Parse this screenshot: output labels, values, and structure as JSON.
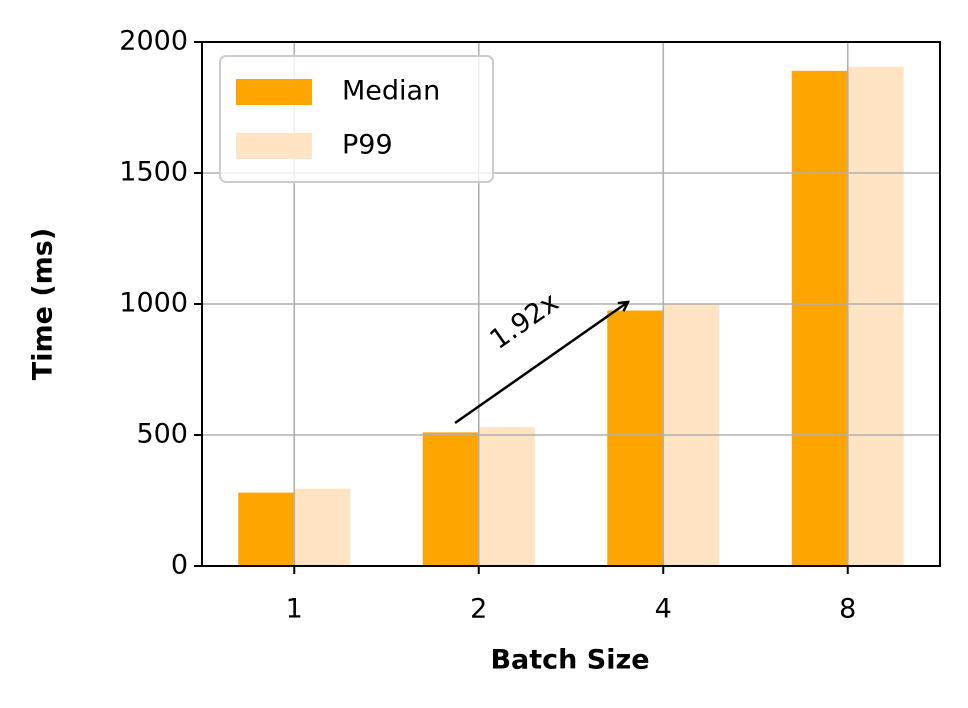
{
  "chart_data": {
    "type": "bar",
    "x_label": "Batch Size",
    "y_label": "Time (ms)",
    "categories": [
      "1",
      "2",
      "4",
      "8"
    ],
    "series": [
      {
        "name": "Median",
        "color": "#ffa500",
        "values": [
          280,
          510,
          975,
          1890
        ]
      },
      {
        "name": "P99",
        "color": "#ffe4c4",
        "values": [
          295,
          530,
          1000,
          1905
        ]
      }
    ],
    "ylim": [
      0,
      2000
    ],
    "yticks": [
      0,
      500,
      1000,
      1500,
      2000
    ],
    "grid": true,
    "legend": "upper left",
    "annotation": "1.92x"
  }
}
